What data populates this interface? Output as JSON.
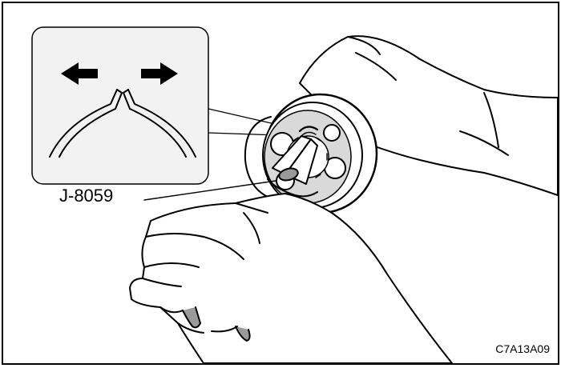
{
  "figure": {
    "tool_label": "J-8059",
    "figure_code": "C7A13A09"
  },
  "icons": {
    "left_arrow": "arrow-left-icon",
    "right_arrow": "arrow-right-icon"
  },
  "colors": {
    "line": "#000000",
    "background": "#ffffff",
    "inset_fill": "#f2f2f2",
    "shade": "#9a9a9a",
    "shade_light": "#d9d9d9"
  }
}
